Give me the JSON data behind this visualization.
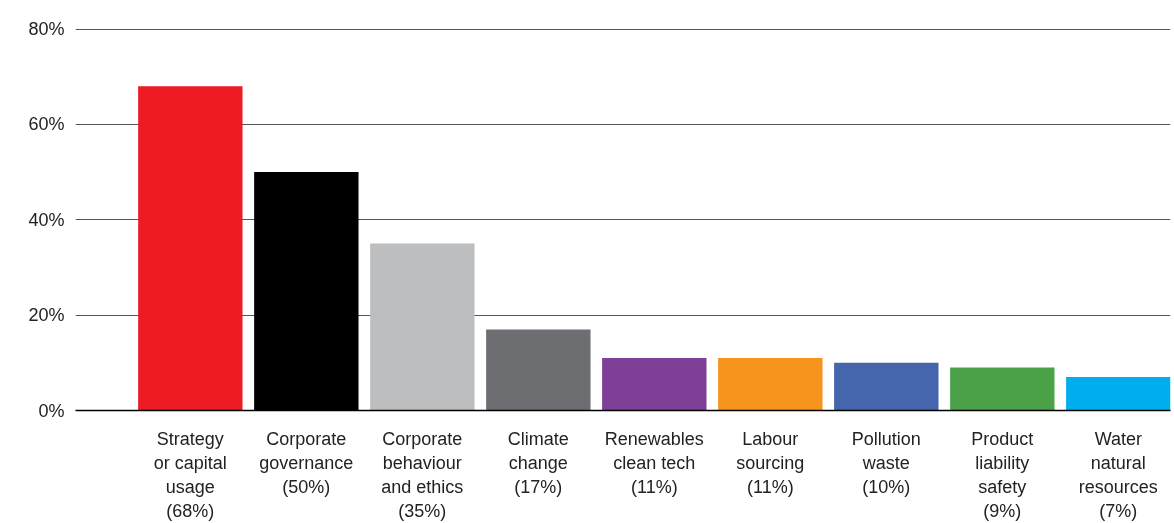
{
  "chart_data": {
    "type": "bar",
    "categories": [
      "Strategy\nor capital\nusage\n(68%)",
      "Corporate\ngovernance\n(50%)",
      "Corporate\nbehaviour\nand ethics\n(35%)",
      "Climate\nchange\n(17%)",
      "Renewables\nclean tech\n(11%)",
      "Labour\nsourcing\n(11%)",
      "Pollution\nwaste\n(10%)",
      "Product\nliability\nsafety\n(9%)",
      "Water\nnatural\nresources\n(7%)"
    ],
    "values": [
      68,
      50,
      35,
      17,
      11,
      11,
      10,
      9,
      7
    ],
    "colors": [
      "#ed1c24",
      "#000000",
      "#bcbec0",
      "#6d6e71",
      "#7f3f98",
      "#f7941d",
      "#4565ad",
      "#4aa147",
      "#00aeef"
    ],
    "ylim": [
      0,
      80
    ],
    "yticks": [
      {
        "value": 0,
        "label": "0%"
      },
      {
        "value": 20,
        "label": "20%"
      },
      {
        "value": 40,
        "label": "40%"
      },
      {
        "value": 60,
        "label": "60%"
      },
      {
        "value": 80,
        "label": "80%"
      }
    ],
    "grid": "y"
  }
}
